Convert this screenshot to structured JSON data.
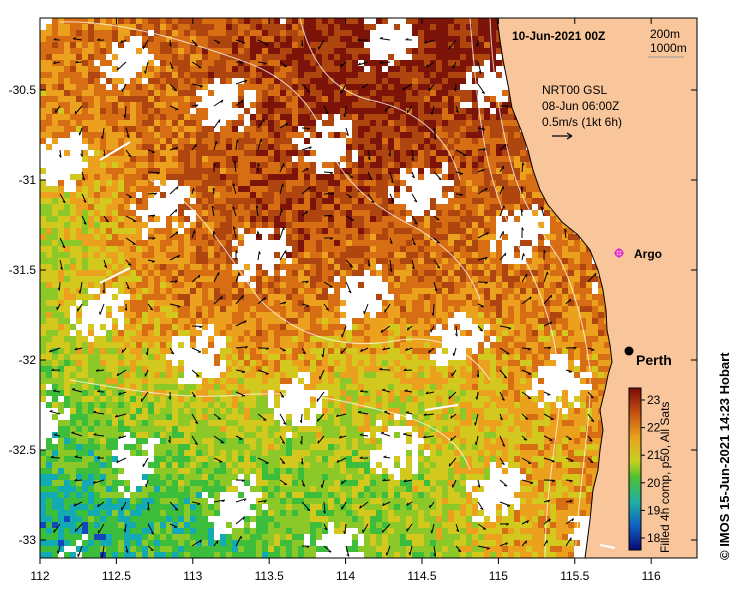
{
  "header": {
    "date": "10-Jun-2021 00Z",
    "legend_depth_1": "200m",
    "legend_depth_2": "1000m"
  },
  "current_info": {
    "source": "NRT00 GSL",
    "time": "08-Jun 06:00Z",
    "scale": "0.5m/s (1kt 6h)"
  },
  "places": [
    {
      "name": "Argo",
      "lon": 115.88,
      "lat": -31.45,
      "marker": "magenta-star"
    },
    {
      "name": "Perth",
      "lon": 115.86,
      "lat": -31.95,
      "marker": "black-dot"
    }
  ],
  "colorbar": {
    "ticks": [
      "23",
      "22",
      "21",
      "20",
      "19",
      "18"
    ],
    "label": "Filled 4h comp, p50, All Sats"
  },
  "credit": "© IMOS 15-Jun-2021 14:23 Hobart",
  "axes": {
    "x_ticks": [
      "112",
      "112.5",
      "113",
      "113.5",
      "114",
      "114.5",
      "115",
      "115.5",
      "116"
    ],
    "y_ticks": [
      "-30.5",
      "-31",
      "-31.5",
      "-32",
      "-32.5",
      "-33"
    ],
    "xlim": [
      112,
      116.3
    ],
    "ylim": [
      -33.1,
      -30.1
    ]
  },
  "colors": {
    "land": "#f9c69c",
    "coast": "#000000",
    "argo": "#e020e0"
  }
}
